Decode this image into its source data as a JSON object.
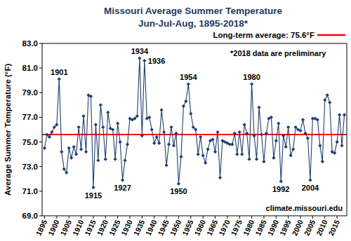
{
  "chart_data": {
    "type": "line",
    "title": "Missouri Average Summer Temperature",
    "subtitle": "Jun-Jul-Aug, 1895-2018*",
    "y_label": "Average Summer Temperature (°F)",
    "notes": [
      "*2018 data are preliminary",
      "climate.missouri.edu"
    ],
    "x": [
      1895,
      1896,
      1897,
      1898,
      1899,
      1900,
      1901,
      1902,
      1903,
      1904,
      1905,
      1906,
      1907,
      1908,
      1909,
      1910,
      1911,
      1912,
      1913,
      1914,
      1915,
      1916,
      1917,
      1918,
      1919,
      1920,
      1921,
      1922,
      1923,
      1924,
      1925,
      1926,
      1927,
      1928,
      1929,
      1930,
      1931,
      1932,
      1933,
      1934,
      1935,
      1936,
      1937,
      1938,
      1939,
      1940,
      1941,
      1942,
      1943,
      1944,
      1945,
      1946,
      1947,
      1948,
      1949,
      1950,
      1951,
      1952,
      1953,
      1954,
      1955,
      1956,
      1957,
      1958,
      1959,
      1960,
      1961,
      1962,
      1963,
      1964,
      1965,
      1966,
      1967,
      1968,
      1969,
      1970,
      1971,
      1972,
      1973,
      1974,
      1975,
      1976,
      1977,
      1978,
      1979,
      1980,
      1981,
      1982,
      1983,
      1984,
      1985,
      1986,
      1987,
      1988,
      1989,
      1990,
      1991,
      1992,
      1993,
      1994,
      1995,
      1996,
      1997,
      1998,
      1999,
      2000,
      2001,
      2002,
      2003,
      2004,
      2005,
      2006,
      2007,
      2008,
      2009,
      2010,
      2011,
      2012,
      2013,
      2014,
      2015,
      2016,
      2017,
      2018
    ],
    "series": [
      {
        "color": "#1f3d7a",
        "marker": "diamond",
        "values": [
          74.5,
          75.6,
          75.4,
          75.8,
          76.2,
          76.4,
          80.1,
          74.2,
          72.8,
          72.5,
          74.5,
          73.7,
          74.6,
          74.0,
          76.2,
          74.4,
          77.1,
          74.2,
          78.8,
          78.7,
          71.3,
          76.4,
          73.5,
          78.0,
          76.2,
          73.6,
          77.4,
          76.1,
          76.0,
          73.6,
          76.5,
          75.0,
          71.9,
          73.5,
          74.8,
          76.9,
          76.8,
          76.9,
          77.1,
          81.8,
          75.5,
          81.6,
          76.9,
          77.0,
          76.0,
          74.9,
          75.4,
          74.9,
          77.6,
          75.8,
          73.1,
          74.8,
          76.2,
          74.7,
          75.7,
          71.6,
          73.8,
          77.9,
          78.3,
          79.7,
          77.3,
          76.2,
          76.0,
          74.0,
          75.4,
          73.9,
          73.3,
          74.4,
          75.1,
          75.2,
          74.2,
          75.8,
          72.1,
          75.1,
          75.0,
          74.9,
          74.8,
          74.8,
          75.7,
          74.0,
          75.8,
          74.0,
          76.4,
          75.7,
          73.6,
          79.7,
          75.5,
          73.6,
          77.8,
          75.6,
          73.4,
          75.7,
          76.9,
          77.0,
          73.7,
          75.1,
          76.5,
          71.8,
          75.5,
          74.6,
          76.2,
          73.9,
          74.4,
          76.2,
          76.0,
          75.9,
          76.8,
          75.7,
          75.3,
          71.9,
          76.9,
          76.9,
          76.8,
          74.7,
          73.4,
          78.4,
          78.8,
          78.2,
          74.2,
          74.1,
          75.0,
          77.2,
          74.7,
          77.2
        ]
      }
    ],
    "reference_lines": [
      {
        "name": "Long-term average: 75.6°F",
        "value": 75.6,
        "color": "#ff0000"
      }
    ],
    "annotations": [
      {
        "text": "1901",
        "x": 1901
      },
      {
        "text": "1915",
        "x": 1915
      },
      {
        "text": "1927",
        "x": 1927
      },
      {
        "text": "1934",
        "x": 1934
      },
      {
        "text": "1936",
        "x": 1936
      },
      {
        "text": "1950",
        "x": 1950
      },
      {
        "text": "1954",
        "x": 1954
      },
      {
        "text": "1980",
        "x": 1980
      },
      {
        "text": "1992",
        "x": 1992
      },
      {
        "text": "2004",
        "x": 2004
      }
    ],
    "xlim": [
      1894,
      2019
    ],
    "xticks": [
      1895,
      1900,
      1905,
      1910,
      1915,
      1920,
      1925,
      1930,
      1935,
      1940,
      1945,
      1950,
      1955,
      1960,
      1965,
      1970,
      1975,
      1980,
      1985,
      1990,
      1995,
      2000,
      2005,
      2010,
      2015
    ],
    "ylim": [
      69,
      83
    ],
    "yticks": [
      {
        "value": 69,
        "label": "69.0"
      },
      {
        "value": 71,
        "label": "71.0"
      },
      {
        "value": 73,
        "label": "73.0"
      },
      {
        "value": 75,
        "label": "75.0"
      },
      {
        "value": 77,
        "label": "77.0"
      },
      {
        "value": 79,
        "label": "79.0"
      },
      {
        "value": 81,
        "label": "81.0"
      },
      {
        "value": 83,
        "label": "83.0"
      }
    ],
    "grid": false,
    "legend": "top-right"
  }
}
